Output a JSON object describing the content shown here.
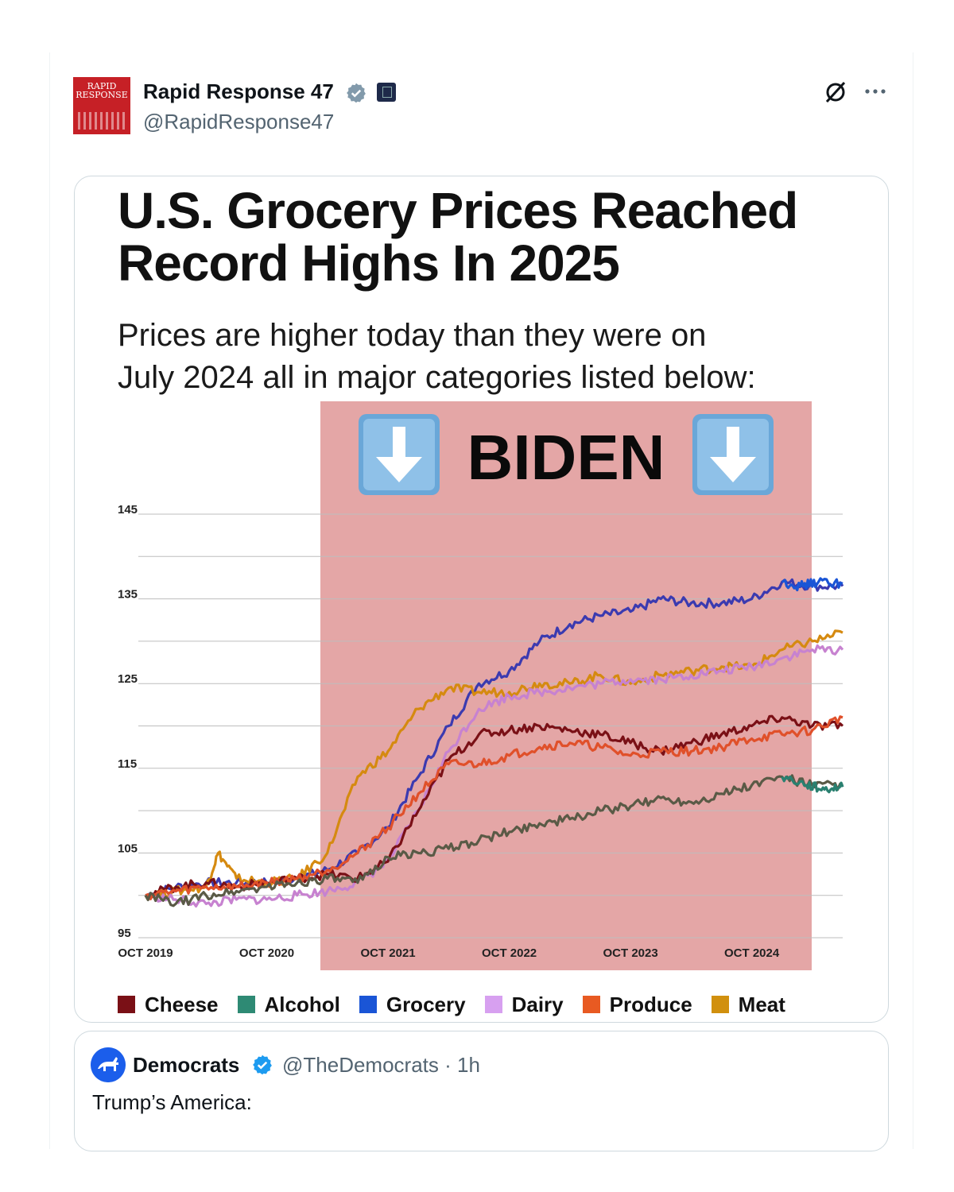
{
  "post": {
    "author_name": "Rapid Response 47",
    "author_handle": "@RapidResponse47",
    "avatar_text": "RAPID RESPONSE"
  },
  "image": {
    "title_line1": "U.S. Grocery Prices Reached",
    "title_line2": "Record Highs In 2025",
    "subtitle_line1": "Prices are higher today than they were on",
    "subtitle_line2": "July 2024 all in major categories listed below:",
    "band_label": "BIDEN",
    "band_icon": "down-arrow-emoji",
    "band_color": "#e4a6a6"
  },
  "chart_data": {
    "type": "line",
    "title": "U.S. Grocery Prices Reached Record Highs In 2025",
    "ylim": [
      95,
      145
    ],
    "yticks": [
      95,
      105,
      115,
      125,
      135,
      145
    ],
    "xtick_labels": [
      "OCT 2019",
      "OCT 2020",
      "OCT 2021",
      "OCT 2022",
      "OCT 2023",
      "OCT 2024"
    ],
    "xlim": [
      2019.75,
      2025.5
    ],
    "shaded_region": {
      "label": "BIDEN",
      "from": 2021.05,
      "to": 2025.05
    },
    "series": [
      {
        "name": "Grocery",
        "color": "#3b3ab0",
        "x": [
          2019.75,
          2020.0,
          2020.25,
          2020.5,
          2020.75,
          2021.0,
          2021.25,
          2021.5,
          2021.75,
          2022.0,
          2022.25,
          2022.5,
          2022.75,
          2023.0,
          2023.25,
          2023.5,
          2023.75,
          2024.0,
          2024.25,
          2024.5,
          2024.75,
          2025.0,
          2025.25,
          2025.5
        ],
        "y": [
          100,
          101,
          101.5,
          101.5,
          101.5,
          102,
          103,
          105,
          108,
          114,
          120,
          125,
          126.5,
          130,
          132,
          133,
          133.5,
          135,
          134.5,
          134.5,
          135,
          137,
          136.5,
          136.5
        ]
      },
      {
        "name": "Meat",
        "color": "#d58a10",
        "x": [
          2019.75,
          2020.0,
          2020.25,
          2020.35,
          2020.5,
          2020.75,
          2021.0,
          2021.25,
          2021.5,
          2021.75,
          2022.0,
          2022.25,
          2022.5,
          2022.75,
          2023.0,
          2023.25,
          2023.5,
          2023.75,
          2024.0,
          2024.25,
          2024.5,
          2024.75,
          2025.0,
          2025.25,
          2025.5
        ],
        "y": [
          100,
          100.5,
          101,
          105,
          102,
          101.5,
          102,
          105,
          114,
          117,
          122,
          124.5,
          124,
          124,
          125,
          125,
          126,
          125,
          126,
          126.5,
          127,
          127,
          129,
          130,
          131
        ]
      },
      {
        "name": "Dairy",
        "color": "#c782d0",
        "x": [
          2019.75,
          2020.0,
          2020.25,
          2020.5,
          2020.75,
          2021.0,
          2021.25,
          2021.5,
          2021.75,
          2022.0,
          2022.25,
          2022.5,
          2022.75,
          2023.0,
          2023.25,
          2023.5,
          2023.75,
          2024.0,
          2024.25,
          2024.5,
          2024.75,
          2025.0,
          2025.25,
          2025.5
        ],
        "y": [
          100,
          99.5,
          99,
          99.5,
          99.5,
          100,
          100.5,
          101.5,
          104,
          110,
          117,
          122,
          123.5,
          124,
          124.5,
          125,
          125.5,
          125.5,
          126,
          126.5,
          127,
          128,
          129,
          129
        ]
      },
      {
        "name": "Cheese",
        "color": "#7a1016",
        "x": [
          2019.75,
          2020.0,
          2020.25,
          2020.5,
          2020.75,
          2021.0,
          2021.25,
          2021.5,
          2021.75,
          2022.0,
          2022.25,
          2022.5,
          2022.75,
          2023.0,
          2023.25,
          2023.5,
          2023.75,
          2024.0,
          2024.25,
          2024.5,
          2024.75,
          2025.0,
          2025.25,
          2025.5
        ],
        "y": [
          100,
          101,
          101.5,
          101,
          101.5,
          102,
          102.5,
          102,
          104,
          110,
          116,
          119,
          119.5,
          120,
          119.5,
          119,
          118,
          117,
          118,
          119,
          120,
          121,
          120,
          120
        ]
      },
      {
        "name": "Produce",
        "color": "#e0502a",
        "x": [
          2019.75,
          2020.0,
          2020.25,
          2020.5,
          2020.75,
          2021.0,
          2021.25,
          2021.5,
          2021.75,
          2022.0,
          2022.25,
          2022.5,
          2022.75,
          2023.0,
          2023.25,
          2023.5,
          2023.75,
          2024.0,
          2024.25,
          2024.5,
          2024.75,
          2025.0,
          2025.25,
          2025.5
        ],
        "y": [
          100,
          100.5,
          101,
          101,
          101.5,
          102,
          103,
          105,
          108,
          112,
          115.5,
          115.5,
          116.5,
          117.5,
          118,
          117.5,
          116.5,
          117,
          117,
          117.5,
          118.5,
          119,
          119.5,
          121
        ]
      },
      {
        "name": "Alcohol",
        "color": "#5a5a46",
        "x": [
          2019.75,
          2020.0,
          2020.25,
          2020.5,
          2020.75,
          2021.0,
          2021.25,
          2021.5,
          2021.75,
          2022.0,
          2022.25,
          2022.5,
          2022.75,
          2023.0,
          2023.25,
          2023.5,
          2023.75,
          2024.0,
          2024.25,
          2024.5,
          2024.75,
          2025.0,
          2025.25,
          2025.5
        ],
        "y": [
          100,
          99,
          100,
          100.5,
          101,
          101.5,
          102,
          101.5,
          104.5,
          105,
          105.5,
          106.5,
          107.5,
          108.5,
          109,
          110,
          110.5,
          111.5,
          111,
          112,
          113,
          114,
          113,
          113
        ]
      },
      {
        "name": "Grocery-tail",
        "color": "#1a55d6",
        "x": [
          2025.0,
          2025.15,
          2025.3,
          2025.5
        ],
        "y": [
          137,
          136.5,
          137,
          136.8
        ]
      },
      {
        "name": "Alcohol-tail",
        "color": "#2a8070",
        "x": [
          2025.0,
          2025.2,
          2025.35,
          2025.5
        ],
        "y": [
          114,
          113,
          112.5,
          112.8
        ]
      }
    ],
    "legend": [
      {
        "label": "Cheese",
        "color": "#7a1016"
      },
      {
        "label": "Alcohol",
        "color": "#2e8a74"
      },
      {
        "label": "Grocery",
        "color": "#1a55d6"
      },
      {
        "label": "Dairy",
        "color": "#d7a0f0"
      },
      {
        "label": "Produce",
        "color": "#e85a22"
      },
      {
        "label": "Meat",
        "color": "#d1900e"
      }
    ]
  },
  "quote": {
    "author_name": "Democrats",
    "author_handle": "@TheDemocrats · 1h",
    "text": "Trump’s America:"
  }
}
